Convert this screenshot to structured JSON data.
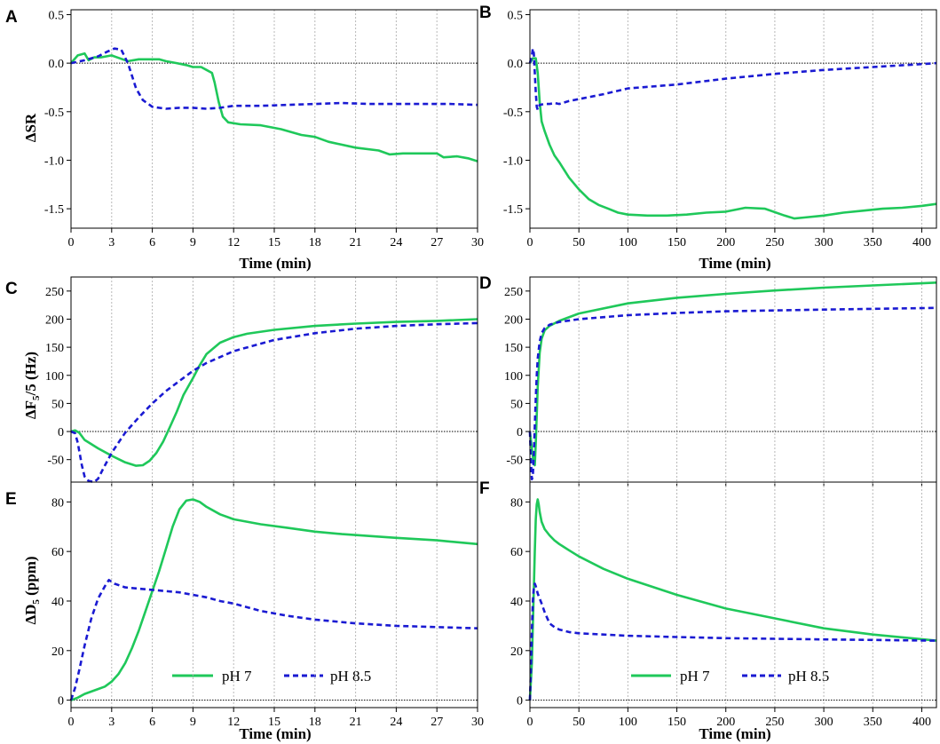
{
  "colors": {
    "ph7": "#1fc85a",
    "ph85": "#1a1ad2"
  },
  "legend": {
    "ph7": "pH 7",
    "ph85": "pH 8.5"
  },
  "chart_data": [
    {
      "panel": "A",
      "type": "line",
      "ylabel": "ΔSR",
      "xlabel": "Time (min)",
      "xlim": [
        0,
        30
      ],
      "ylim": [
        -1.7,
        0.55
      ],
      "xticks": [
        0,
        3,
        6,
        9,
        12,
        15,
        18,
        21,
        24,
        27,
        30
      ],
      "yticks": [
        0.5,
        0.0,
        -0.5,
        -1.0,
        -1.5
      ],
      "ytick_labels": [
        "0.5",
        "0.0",
        "-0.5",
        "-1.0",
        "-1.5"
      ],
      "series": [
        {
          "name": "pH 7",
          "x": [
            0,
            0.5,
            1,
            1.3,
            1.7,
            2.2,
            3,
            3.6,
            4.2,
            5,
            6,
            6.5,
            7,
            7.8,
            8.5,
            9,
            9.6,
            10,
            10.4,
            10.6,
            10.9,
            11.2,
            11.6,
            12.5,
            14,
            15.5,
            17,
            18,
            19,
            21,
            22.7,
            23.5,
            24.5,
            26,
            27,
            27.5,
            28.5,
            29.3,
            30
          ],
          "y": [
            0,
            0.08,
            0.1,
            0.03,
            0.06,
            0.06,
            0.08,
            0.05,
            0.02,
            0.04,
            0.04,
            0.04,
            0.02,
            0.0,
            -0.02,
            -0.04,
            -0.04,
            -0.07,
            -0.1,
            -0.2,
            -0.4,
            -0.55,
            -0.61,
            -0.63,
            -0.64,
            -0.68,
            -0.74,
            -0.76,
            -0.81,
            -0.87,
            -0.9,
            -0.94,
            -0.93,
            -0.93,
            -0.93,
            -0.97,
            -0.96,
            -0.98,
            -1.01
          ]
        },
        {
          "name": "pH 8.5",
          "x": [
            0,
            1,
            2,
            2.7,
            3.2,
            3.7,
            4.2,
            4.8,
            5.3,
            6,
            7,
            8,
            9,
            10,
            11,
            12,
            14,
            16,
            18,
            20,
            22,
            24,
            26,
            28,
            30
          ],
          "y": [
            0,
            0.03,
            0.07,
            0.12,
            0.15,
            0.14,
            0.0,
            -0.26,
            -0.38,
            -0.45,
            -0.47,
            -0.46,
            -0.46,
            -0.47,
            -0.46,
            -0.44,
            -0.44,
            -0.43,
            -0.42,
            -0.41,
            -0.42,
            -0.42,
            -0.42,
            -0.42,
            -0.43
          ]
        }
      ]
    },
    {
      "panel": "B",
      "type": "line",
      "ylabel": "",
      "xlabel": "Time (min)",
      "xlim": [
        0,
        415
      ],
      "ylim": [
        -1.7,
        0.55
      ],
      "xticks": [
        0,
        50,
        100,
        150,
        200,
        250,
        300,
        350,
        400
      ],
      "yticks": [
        0.5,
        0.0,
        -0.5,
        -1.0,
        -1.5
      ],
      "ytick_labels": [
        "0.5",
        "0.0",
        "-0.5",
        "-1.0",
        "-1.5"
      ],
      "series": [
        {
          "name": "pH 7",
          "x": [
            0,
            3,
            6,
            8,
            10,
            12,
            15,
            20,
            25,
            30,
            40,
            50,
            60,
            70,
            80,
            90,
            100,
            120,
            140,
            160,
            180,
            200,
            220,
            240,
            260,
            270,
            280,
            300,
            320,
            340,
            360,
            380,
            400,
            415
          ],
          "y": [
            0,
            0.05,
            0.05,
            -0.1,
            -0.4,
            -0.6,
            -0.7,
            -0.84,
            -0.95,
            -1.02,
            -1.18,
            -1.3,
            -1.4,
            -1.46,
            -1.5,
            -1.54,
            -1.56,
            -1.57,
            -1.57,
            -1.56,
            -1.54,
            -1.53,
            -1.49,
            -1.5,
            -1.57,
            -1.6,
            -1.59,
            -1.57,
            -1.54,
            -1.52,
            -1.5,
            -1.49,
            -1.47,
            -1.45
          ]
        },
        {
          "name": "pH 8.5",
          "x": [
            0,
            2,
            3,
            4,
            5,
            6,
            7,
            8,
            10,
            15,
            20,
            25,
            30,
            40,
            50,
            75,
            100,
            150,
            200,
            250,
            300,
            350,
            400,
            415
          ],
          "y": [
            0,
            0.08,
            0.15,
            0.1,
            -0.1,
            -0.3,
            -0.45,
            -0.48,
            -0.43,
            -0.42,
            -0.42,
            -0.41,
            -0.42,
            -0.39,
            -0.37,
            -0.32,
            -0.26,
            -0.22,
            -0.16,
            -0.11,
            -0.07,
            -0.04,
            -0.01,
            0.0
          ]
        }
      ]
    },
    {
      "panel": "C",
      "type": "line",
      "ylabel": "ΔF5/5 (Hz)",
      "xlabel": "",
      "xlim": [
        0,
        30
      ],
      "ylim": [
        -90,
        275
      ],
      "xticks": [
        0,
        3,
        6,
        9,
        12,
        15,
        18,
        21,
        24,
        27,
        30
      ],
      "yticks": [
        250,
        200,
        150,
        100,
        50,
        0,
        -50
      ],
      "ytick_labels": [
        "250",
        "200",
        "150",
        "100",
        "50",
        "0",
        "-50"
      ],
      "series": [
        {
          "name": "pH 7",
          "x": [
            0,
            0.3,
            0.6,
            1,
            2,
            3,
            4,
            4.8,
            5.3,
            5.8,
            6.3,
            6.8,
            7.3,
            7.8,
            8.3,
            9,
            9.5,
            10,
            11,
            12,
            13,
            15,
            18,
            21,
            24,
            27,
            30
          ],
          "y": [
            0,
            2,
            -2,
            -15,
            -30,
            -43,
            -55,
            -61,
            -60,
            -52,
            -38,
            -18,
            8,
            35,
            65,
            95,
            118,
            138,
            158,
            168,
            174,
            181,
            188,
            192,
            195,
            197,
            200
          ]
        },
        {
          "name": "pH 8.5",
          "x": [
            0,
            0.3,
            0.5,
            0.8,
            1,
            1.3,
            1.7,
            2,
            2.4,
            3,
            3.5,
            4,
            5,
            6,
            7,
            8,
            9,
            10,
            12,
            15,
            18,
            21,
            24,
            27,
            30
          ],
          "y": [
            0,
            -3,
            -20,
            -60,
            -80,
            -88,
            -90,
            -84,
            -65,
            -38,
            -20,
            -2,
            25,
            50,
            72,
            90,
            108,
            122,
            143,
            163,
            175,
            183,
            188,
            191,
            193
          ]
        }
      ]
    },
    {
      "panel": "D",
      "type": "line",
      "ylabel": "",
      "xlabel": "",
      "xlim": [
        0,
        415
      ],
      "ylim": [
        -90,
        275
      ],
      "xticks": [
        0,
        50,
        100,
        150,
        200,
        250,
        300,
        350,
        400
      ],
      "yticks": [
        250,
        200,
        150,
        100,
        50,
        0,
        -50
      ],
      "ytick_labels": [
        "250",
        "200",
        "150",
        "100",
        "50",
        "0",
        "-50"
      ],
      "series": [
        {
          "name": "pH 7",
          "x": [
            0,
            2,
            4,
            5,
            6,
            8,
            10,
            12,
            15,
            20,
            30,
            50,
            100,
            150,
            200,
            250,
            300,
            350,
            415
          ],
          "y": [
            0,
            -30,
            -58,
            -60,
            -20,
            80,
            140,
            165,
            180,
            188,
            197,
            210,
            228,
            238,
            245,
            251,
            256,
            260,
            265
          ]
        },
        {
          "name": "pH 8.5",
          "x": [
            0,
            1,
            2,
            3,
            4,
            5,
            6,
            7,
            8,
            10,
            12,
            15,
            20,
            30,
            50,
            100,
            150,
            200,
            300,
            415
          ],
          "y": [
            0,
            -50,
            -85,
            -80,
            -40,
            10,
            60,
            100,
            130,
            160,
            175,
            184,
            190,
            195,
            200,
            207,
            211,
            214,
            217,
            220
          ]
        }
      ]
    },
    {
      "panel": "E",
      "type": "line",
      "ylabel": "ΔD5 (ppm)",
      "xlabel": "Time (min)",
      "xlim": [
        0,
        30
      ],
      "ylim": [
        -3,
        88
      ],
      "xticks": [
        0,
        3,
        6,
        9,
        12,
        15,
        18,
        21,
        24,
        27,
        30
      ],
      "xtick_labels": [
        "0",
        "3",
        "6",
        "9",
        "12",
        "15",
        "18",
        "21",
        "24",
        "27",
        "30"
      ],
      "yticks": [
        80,
        60,
        40,
        20,
        0
      ],
      "ytick_labels": [
        "80",
        "60",
        "40",
        "20",
        "0"
      ],
      "series": [
        {
          "name": "pH 7",
          "x": [
            0,
            0.5,
            1,
            1.5,
            2,
            2.5,
            3,
            3.5,
            4,
            4.5,
            5,
            5.5,
            6,
            6.5,
            7,
            7.5,
            8,
            8.5,
            9,
            9.5,
            10,
            11,
            12,
            14,
            16,
            18,
            20,
            24,
            27,
            30
          ],
          "y": [
            0,
            1,
            2.5,
            3.5,
            4.5,
            5.5,
            7.5,
            10.5,
            15,
            21,
            28,
            36,
            44,
            52,
            61,
            70,
            77,
            80.5,
            81,
            80,
            78,
            75,
            73,
            71,
            69.5,
            68,
            67,
            65.5,
            64.5,
            63
          ]
        },
        {
          "name": "pH 8.5",
          "x": [
            0,
            0.3,
            0.6,
            1,
            1.5,
            2,
            2.5,
            2.8,
            3.2,
            4,
            5,
            6,
            7,
            8,
            9,
            10,
            11,
            12,
            13,
            14,
            15,
            16,
            18,
            21,
            24,
            27,
            30
          ],
          "y": [
            0,
            5,
            12,
            22,
            33,
            41,
            46,
            48.5,
            47,
            45.5,
            45,
            44.5,
            44,
            43.5,
            42.5,
            41.5,
            40,
            39,
            37.5,
            36,
            35,
            34,
            32.5,
            31,
            30,
            29.5,
            29
          ]
        }
      ]
    },
    {
      "panel": "F",
      "type": "line",
      "ylabel": "",
      "xlabel": "Time (min)",
      "xlim": [
        0,
        415
      ],
      "ylim": [
        -3,
        88
      ],
      "xticks": [
        0,
        50,
        100,
        150,
        200,
        250,
        300,
        350,
        400
      ],
      "xtick_labels": [
        "0",
        "50",
        "100",
        "150",
        "200",
        "250",
        "300",
        "350",
        "400"
      ],
      "yticks": [
        80,
        60,
        40,
        20,
        0
      ],
      "ytick_labels": [
        "80",
        "60",
        "40",
        "20",
        "0"
      ],
      "series": [
        {
          "name": "pH 7",
          "x": [
            0,
            2,
            4,
            5,
            6,
            7,
            8,
            9,
            10,
            12,
            15,
            20,
            25,
            30,
            40,
            50,
            75,
            100,
            150,
            200,
            250,
            300,
            350,
            415
          ],
          "y": [
            0,
            15,
            45,
            60,
            73,
            79,
            81,
            79,
            76,
            72,
            69,
            66.5,
            64.5,
            63,
            60.5,
            58,
            53,
            49,
            42.5,
            37,
            33,
            29,
            26.5,
            24
          ]
        },
        {
          "name": "pH 8.5",
          "x": [
            0,
            1,
            2,
            3,
            4,
            5,
            6,
            7,
            8,
            10,
            12,
            15,
            20,
            25,
            30,
            40,
            50,
            75,
            100,
            150,
            200,
            300,
            415
          ],
          "y": [
            0,
            12,
            28,
            40,
            45.5,
            47,
            46,
            44.5,
            43,
            41,
            39,
            35.5,
            31,
            29.5,
            28.5,
            27.5,
            27,
            26.5,
            26,
            25.5,
            25,
            24.5,
            24
          ]
        }
      ]
    }
  ]
}
